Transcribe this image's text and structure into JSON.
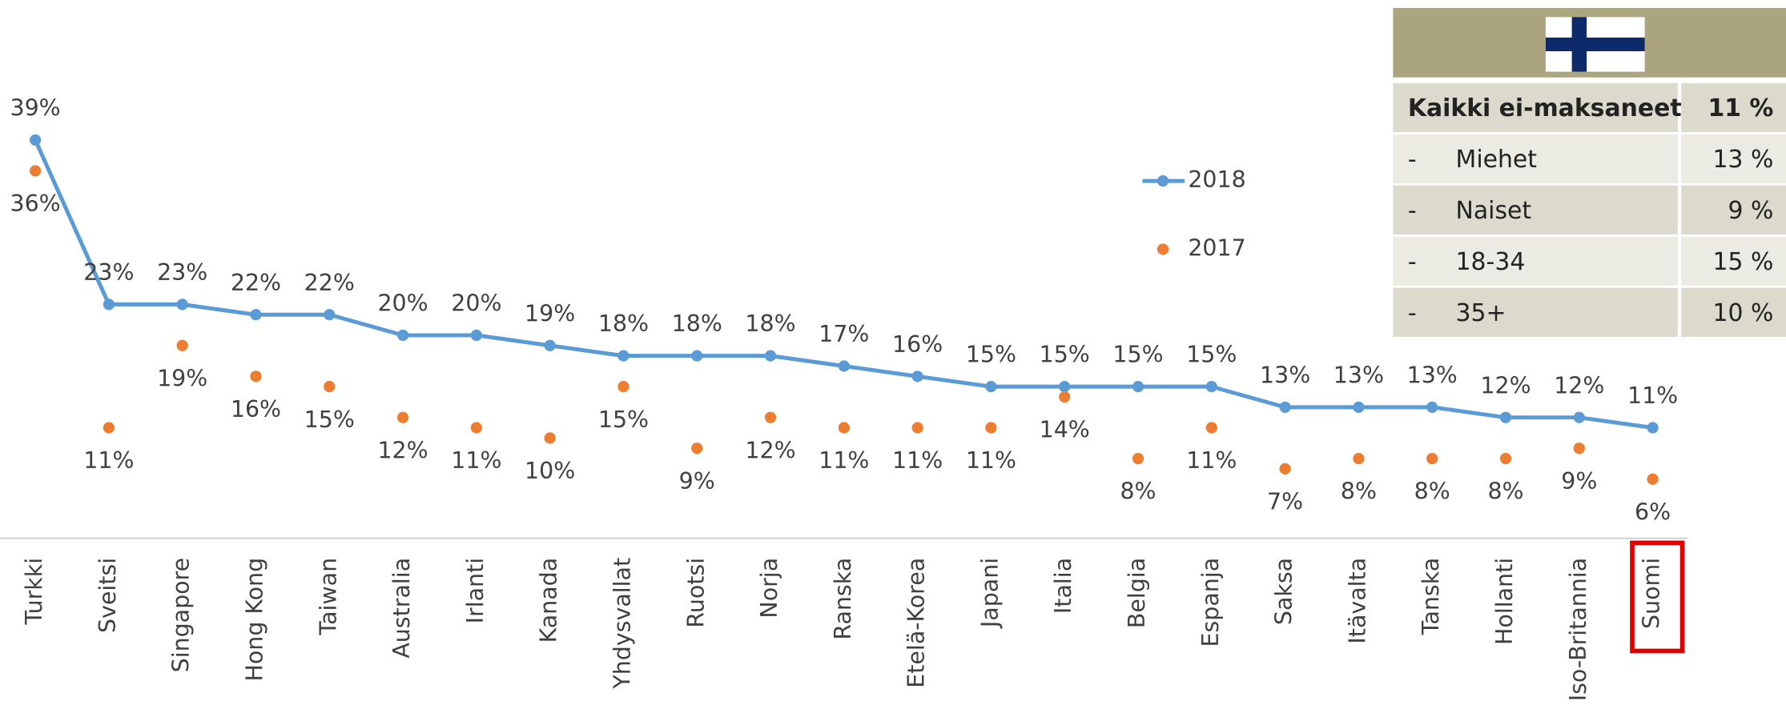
{
  "chart_data": {
    "type": "line",
    "categories": [
      "Turkki",
      "Sveitsi",
      "Singapore",
      "Hong Kong",
      "Taiwan",
      "Australia",
      "Irlanti",
      "Kanada",
      "Yhdysvallat",
      "Ruotsi",
      "Norja",
      "Ranska",
      "Etelä-Korea",
      "Japani",
      "Italia",
      "Belgia",
      "Espanja",
      "Saksa",
      "Itävalta",
      "Tanska",
      "Hollanti",
      "Iso-Britannia",
      "Suomi"
    ],
    "series": [
      {
        "name": "2018",
        "color": "#5b9bd5",
        "style": "line",
        "values": [
          39,
          23,
          23,
          22,
          22,
          20,
          20,
          19,
          18,
          18,
          18,
          17,
          16,
          15,
          15,
          15,
          15,
          13,
          13,
          13,
          12,
          12,
          11
        ],
        "value_labels": [
          "39%",
          "23%",
          "23%",
          "22%",
          "22%",
          "20%",
          "20%",
          "19%",
          "18%",
          "18%",
          "18%",
          "17%",
          "16%",
          "15%",
          "15%",
          "15%",
          "15%",
          "13%",
          "13%",
          "13%",
          "12%",
          "12%",
          "11%"
        ]
      },
      {
        "name": "2017",
        "color": "#ed7d31",
        "style": "markers",
        "values": [
          36,
          11,
          19,
          16,
          15,
          12,
          11,
          10,
          15,
          9,
          12,
          11,
          11,
          11,
          14,
          8,
          11,
          7,
          8,
          8,
          8,
          9,
          6
        ],
        "value_labels": [
          "36%",
          "11%",
          "19%",
          "16%",
          "15%",
          "12%",
          "11%",
          "10%",
          "15%",
          "9%",
          "12%",
          "11%",
          "11%",
          "11%",
          "14%",
          "8%",
          "11%",
          "7%",
          "8%",
          "8%",
          "8%",
          "9%",
          "6%"
        ]
      }
    ],
    "highlight": 22,
    "highlight_color": "#e00000"
  },
  "table": {
    "rows": [
      {
        "label": "Kaikki ei-maksaneet",
        "value": "11 %"
      },
      {
        "prefix": "-",
        "label": "Miehet",
        "value": "13 %"
      },
      {
        "prefix": "-",
        "label": "Naiset",
        "value": "9 %"
      },
      {
        "prefix": "-",
        "label": "18-34",
        "value": "15 %"
      },
      {
        "prefix": "-",
        "label": "35+",
        "value": "10 %"
      }
    ]
  }
}
